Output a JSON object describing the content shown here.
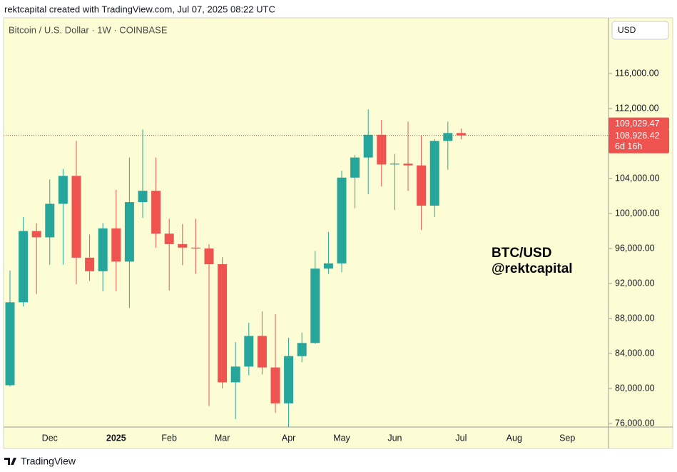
{
  "header": "rektcapital created with TradingView.com, Jul 07, 2025 08:22 UTC",
  "footer": {
    "logo": "TradingView"
  },
  "chart_data": {
    "type": "candlestick",
    "title": "Bitcoin / U.S. Dollar · 1W · COINBASE",
    "currency": "USD",
    "watermark": [
      "BTC/USD",
      "@rektcapital"
    ],
    "categories": [
      null,
      null,
      null,
      "Dec",
      null,
      null,
      null,
      null,
      "2025",
      null,
      null,
      null,
      "Feb",
      null,
      null,
      null,
      "Mar",
      null,
      null,
      null,
      null,
      "Apr",
      null,
      null,
      null,
      "May",
      null,
      null,
      null,
      "Jun",
      null,
      null,
      null,
      null,
      "Jul",
      null,
      null,
      null,
      "Aug",
      null,
      null,
      null,
      "Sep"
    ],
    "open": [
      80370,
      89850,
      98000,
      97275,
      101110,
      104300,
      94950,
      93400,
      98300,
      94500,
      101300,
      102600,
      97700,
      96500,
      96100,
      96000,
      94200,
      80700,
      82500,
      86000,
      82400,
      78300,
      83700,
      85200,
      93700,
      94300,
      104100,
      106400,
      109000,
      105600,
      105700,
      105500,
      100900,
      108300,
      109200,
      null,
      null,
      null,
      null,
      null,
      null,
      null,
      null
    ],
    "high": [
      93480,
      99588,
      98900,
      103900,
      105100,
      108300,
      97600,
      98900,
      102700,
      106400,
      109600,
      106400,
      99400,
      98800,
      99400,
      96500,
      95000,
      85300,
      87500,
      88800,
      88500,
      85800,
      86400,
      95700,
      97900,
      104900,
      106700,
      111900,
      110700,
      106800,
      110500,
      108900,
      108500,
      110500,
      109700,
      null,
      null,
      null,
      null,
      null,
      null,
      null,
      null
    ],
    "low": [
      80220,
      89380,
      90800,
      94150,
      94150,
      91900,
      92300,
      91100,
      91100,
      89200,
      99500,
      96100,
      91200,
      94100,
      93100,
      78000,
      80000,
      76500,
      81500,
      81600,
      77200,
      74500,
      83000,
      85100,
      93100,
      93300,
      100600,
      102200,
      103100,
      100400,
      102600,
      98100,
      99600,
      105000,
      108500,
      null,
      null,
      null,
      null,
      null,
      null,
      null,
      null
    ],
    "close": [
      89850,
      98000,
      97275,
      101110,
      104300,
      94950,
      93400,
      98300,
      94500,
      101300,
      102600,
      97700,
      96500,
      96100,
      96000,
      94200,
      80700,
      82500,
      86000,
      82400,
      78300,
      83700,
      85200,
      93700,
      94300,
      104100,
      106400,
      109000,
      105600,
      105700,
      105500,
      100900,
      108300,
      109200,
      108926.42,
      null,
      null,
      null,
      null,
      null,
      null,
      null,
      null
    ],
    "up_color": "#26a69a",
    "down_color": "#ef5350",
    "ylim": [
      75592,
      122367
    ],
    "yticks": [
      {
        "value": 76000,
        "label": "76,000.00"
      },
      {
        "value": 80000,
        "label": "80,000.00"
      },
      {
        "value": 84000,
        "label": "84,000.00"
      },
      {
        "value": 88000,
        "label": "88,000.00"
      },
      {
        "value": 92000,
        "label": "92,000.00"
      },
      {
        "value": 96000,
        "label": "96,000.00"
      },
      {
        "value": 100000,
        "label": "100,000.00"
      },
      {
        "value": 104000,
        "label": "104,000.00"
      },
      {
        "value": 108000,
        "label": "108,000.00"
      },
      {
        "value": 112000,
        "label": "112,000.00"
      },
      {
        "value": 116000,
        "label": "116,000.00"
      }
    ],
    "price_labels": [
      {
        "value": 109029.47,
        "label": "109,029.47"
      },
      {
        "value": 108926.42,
        "label": "108,926.42"
      }
    ],
    "countdown": "6d 16h"
  }
}
